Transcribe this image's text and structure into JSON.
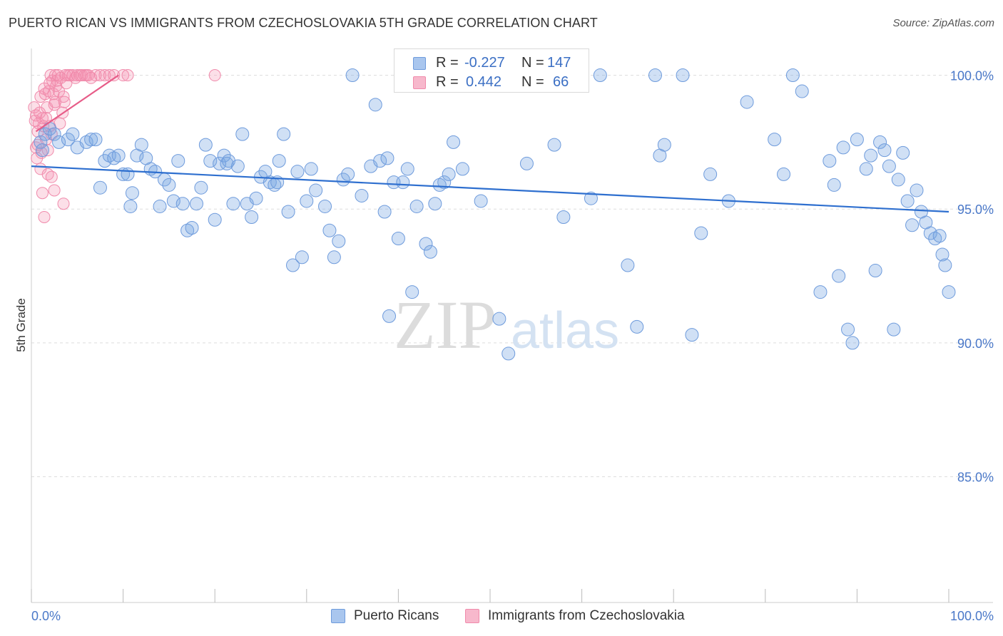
{
  "header": {
    "title": "PUERTO RICAN VS IMMIGRANTS FROM CZECHOSLOVAKIA 5TH GRADE CORRELATION CHART",
    "source": "Source: ZipAtlas.com"
  },
  "watermark": {
    "zip": "ZIP",
    "atlas": "atlas"
  },
  "legend": {
    "rows": [
      {
        "r_label": "R =",
        "r_value": "-0.227",
        "n_label": "N =",
        "n_value": "147",
        "color": "#a9c6ee"
      },
      {
        "r_label": "R =",
        "r_value": "0.442",
        "n_label": "N =",
        "n_value": "66",
        "color": "#f7b8cc"
      }
    ]
  },
  "bottom_legend": {
    "items": [
      {
        "label": "Puerto Ricans",
        "color": "#a9c6ee"
      },
      {
        "label": "Immigrants from Czechoslovakia",
        "color": "#f7b8cc"
      }
    ]
  },
  "colors": {
    "blue_fill": "rgba(120,165,225,0.35)",
    "blue_stroke": "#6e9bdc",
    "blue_line": "#2e6fcf",
    "pink_fill": "rgba(245,150,180,0.30)",
    "pink_stroke": "#f08aab",
    "pink_line": "#e75c88"
  },
  "chart_data": {
    "type": "scatter",
    "title": "PUERTO RICAN VS IMMIGRANTS FROM CZECHOSLOVAKIA 5TH GRADE CORRELATION CHART",
    "xlabel": "",
    "ylabel": "5th Grade",
    "xlim": [
      0,
      100
    ],
    "ylim": [
      80.3,
      101.0
    ],
    "x_tick_labels": [
      "0.0%",
      "100.0%"
    ],
    "y_ticks": [
      85,
      90,
      95,
      100
    ],
    "y_tick_labels": [
      "85.0%",
      "90.0%",
      "95.0%",
      "100.0%"
    ],
    "grid": true,
    "legend_position": "top-center",
    "series": [
      {
        "name": "Puerto Ricans",
        "r": -0.227,
        "n": 147,
        "trend": {
          "x": [
            0,
            100
          ],
          "y": [
            96.6,
            94.9
          ]
        },
        "points": [
          [
            1,
            97.5
          ],
          [
            1.5,
            97.8
          ],
          [
            2,
            98
          ],
          [
            1.2,
            97.2
          ],
          [
            2.5,
            97.8
          ],
          [
            3,
            97.5
          ],
          [
            4,
            97.6
          ],
          [
            4.5,
            97.8
          ],
          [
            5,
            97.3
          ],
          [
            6,
            97.5
          ],
          [
            6.5,
            97.6
          ],
          [
            7,
            97.6
          ],
          [
            7.5,
            95.8
          ],
          [
            8,
            96.8
          ],
          [
            8.5,
            97
          ],
          [
            9,
            96.9
          ],
          [
            9.5,
            97
          ],
          [
            10,
            96.3
          ],
          [
            10.5,
            96.3
          ],
          [
            11,
            95.6
          ],
          [
            11.5,
            97
          ],
          [
            12,
            97.4
          ],
          [
            12.5,
            96.9
          ],
          [
            13,
            96.5
          ],
          [
            13.5,
            96.4
          ],
          [
            14,
            95.1
          ],
          [
            14.5,
            96.1
          ],
          [
            15,
            95.9
          ],
          [
            15.5,
            95.3
          ],
          [
            16,
            96.8
          ],
          [
            16.5,
            95.2
          ],
          [
            17,
            94.2
          ],
          [
            17.5,
            94.3
          ],
          [
            18,
            95.2
          ],
          [
            18.5,
            95.8
          ],
          [
            19,
            97.4
          ],
          [
            19.5,
            96.8
          ],
          [
            20,
            94.6
          ],
          [
            20.5,
            96.7
          ],
          [
            21,
            97
          ],
          [
            21.5,
            96.8
          ],
          [
            22,
            95.2
          ],
          [
            22.5,
            96.6
          ],
          [
            23,
            97.8
          ],
          [
            23.5,
            95.2
          ],
          [
            24,
            94.7
          ],
          [
            24.5,
            95.4
          ],
          [
            25,
            96.2
          ],
          [
            25.5,
            96.4
          ],
          [
            26,
            96
          ],
          [
            26.5,
            95.9
          ],
          [
            27,
            96.8
          ],
          [
            27.5,
            97.8
          ],
          [
            28,
            94.9
          ],
          [
            28.5,
            92.9
          ],
          [
            29,
            96.4
          ],
          [
            29.5,
            93.2
          ],
          [
            30,
            95.3
          ],
          [
            30.5,
            96.5
          ],
          [
            31,
            95.7
          ],
          [
            32,
            95.1
          ],
          [
            32.5,
            94.2
          ],
          [
            33,
            93.2
          ],
          [
            33.5,
            93.8
          ],
          [
            34,
            96.1
          ],
          [
            34.5,
            96.3
          ],
          [
            35,
            100
          ],
          [
            36,
            95.5
          ],
          [
            37,
            96.6
          ],
          [
            37.5,
            98.9
          ],
          [
            38,
            96.8
          ],
          [
            38.5,
            94.9
          ],
          [
            39,
            91
          ],
          [
            39.5,
            96
          ],
          [
            40,
            93.9
          ],
          [
            40.5,
            96
          ],
          [
            41,
            96.5
          ],
          [
            41.5,
            91.9
          ],
          [
            42,
            95.1
          ],
          [
            43,
            93.7
          ],
          [
            43.5,
            93.4
          ],
          [
            44,
            95.2
          ],
          [
            45,
            96
          ],
          [
            45.5,
            96.3
          ],
          [
            46,
            97.5
          ],
          [
            48,
            100
          ],
          [
            49,
            95.3
          ],
          [
            50,
            100
          ],
          [
            51,
            90.9
          ],
          [
            52,
            89.6
          ],
          [
            53,
            100
          ],
          [
            56,
            100
          ],
          [
            60,
            100
          ],
          [
            61,
            95.4
          ],
          [
            62,
            100
          ],
          [
            65,
            92.9
          ],
          [
            66,
            90.6
          ],
          [
            68,
            100
          ],
          [
            68.5,
            97
          ],
          [
            69,
            97.4
          ],
          [
            71,
            100
          ],
          [
            72,
            90.3
          ],
          [
            73,
            94.1
          ],
          [
            74,
            96.3
          ],
          [
            76,
            95.3
          ],
          [
            78,
            99
          ],
          [
            81,
            97.6
          ],
          [
            82,
            96.3
          ],
          [
            83,
            100
          ],
          [
            84,
            99.4
          ],
          [
            86,
            91.9
          ],
          [
            87,
            96.8
          ],
          [
            87.5,
            95.9
          ],
          [
            88,
            92.5
          ],
          [
            88.5,
            97.3
          ],
          [
            89,
            90.5
          ],
          [
            89.5,
            90
          ],
          [
            90,
            97.6
          ],
          [
            91,
            96.5
          ],
          [
            91.5,
            97
          ],
          [
            92,
            92.7
          ],
          [
            92.5,
            97.5
          ],
          [
            93,
            97.2
          ],
          [
            93.5,
            96.6
          ],
          [
            94,
            90.5
          ],
          [
            94.5,
            96.1
          ],
          [
            95,
            97.1
          ],
          [
            95.5,
            95.3
          ],
          [
            96,
            94.4
          ],
          [
            96.5,
            95.7
          ],
          [
            97,
            94.9
          ],
          [
            97.5,
            94.5
          ],
          [
            98,
            94.1
          ],
          [
            98.5,
            93.9
          ],
          [
            99,
            94
          ],
          [
            99.3,
            93.3
          ],
          [
            99.6,
            92.9
          ],
          [
            100,
            91.9
          ],
          [
            54,
            96.7
          ],
          [
            57,
            97.4
          ],
          [
            47,
            96.5
          ],
          [
            58,
            94.7
          ],
          [
            44.5,
            95.9
          ],
          [
            38.8,
            96.9
          ],
          [
            26.8,
            96
          ],
          [
            21.3,
            96.7
          ],
          [
            10.8,
            95.1
          ]
        ]
      },
      {
        "name": "Immigrants from Czechoslovakia",
        "r": 0.442,
        "n": 66,
        "trend": {
          "x": [
            0.5,
            9.5
          ],
          "y": [
            97.9,
            100
          ]
        },
        "points": [
          [
            0.3,
            98.8
          ],
          [
            0.5,
            98.5
          ],
          [
            0.7,
            97.9
          ],
          [
            0.8,
            98.2
          ],
          [
            1,
            99.2
          ],
          [
            1.2,
            98.4
          ],
          [
            1.3,
            98.1
          ],
          [
            1.4,
            99.5
          ],
          [
            1.5,
            99.3
          ],
          [
            1.6,
            97.6
          ],
          [
            1.7,
            98.8
          ],
          [
            1.8,
            97.2
          ],
          [
            1.9,
            99.4
          ],
          [
            2,
            98.1
          ],
          [
            2.1,
            100
          ],
          [
            2.2,
            97.8
          ],
          [
            2.3,
            99.8
          ],
          [
            2.4,
            99.3
          ],
          [
            2.5,
            98.9
          ],
          [
            2.6,
            100
          ],
          [
            2.7,
            99.6
          ],
          [
            2.8,
            99.8
          ],
          [
            2.9,
            100
          ],
          [
            3,
            99.4
          ],
          [
            3.2,
            99.9
          ],
          [
            3.4,
            98.6
          ],
          [
            3.5,
            99.2
          ],
          [
            3.6,
            99
          ],
          [
            3.7,
            100
          ],
          [
            3.8,
            99.7
          ],
          [
            4,
            100
          ],
          [
            4.2,
            100
          ],
          [
            4.5,
            100
          ],
          [
            4.8,
            99.9
          ],
          [
            5,
            100
          ],
          [
            5.3,
            100
          ],
          [
            5.5,
            100
          ],
          [
            5.8,
            100
          ],
          [
            6,
            100
          ],
          [
            6.2,
            100
          ],
          [
            6.5,
            99.9
          ],
          [
            7,
            100
          ],
          [
            7.5,
            100
          ],
          [
            8,
            100
          ],
          [
            8.5,
            100
          ],
          [
            9,
            100
          ],
          [
            10,
            100
          ],
          [
            10.5,
            100
          ],
          [
            20,
            100
          ],
          [
            0.5,
            97.3
          ],
          [
            0.6,
            96.9
          ],
          [
            1,
            96.5
          ],
          [
            1.2,
            95.6
          ],
          [
            1.4,
            94.7
          ],
          [
            1.8,
            96.3
          ],
          [
            2.2,
            96.2
          ],
          [
            2.5,
            95.7
          ],
          [
            3.5,
            95.2
          ],
          [
            0.4,
            98.3
          ],
          [
            0.9,
            98.6
          ],
          [
            1.1,
            97.1
          ],
          [
            2,
            99.7
          ],
          [
            2.6,
            99
          ],
          [
            3.1,
            98.2
          ],
          [
            1.6,
            98.4
          ],
          [
            0.7,
            97.4
          ]
        ]
      }
    ]
  }
}
